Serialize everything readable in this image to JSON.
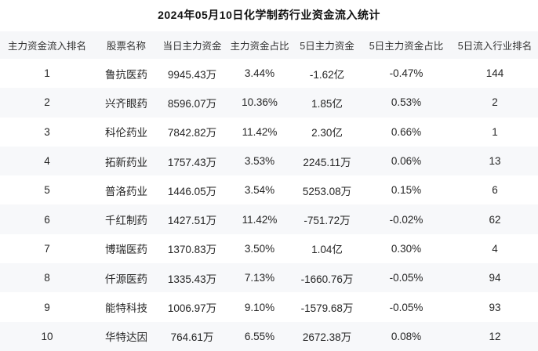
{
  "title": "2024年05月10日化学制药行业资金流入统计",
  "colors": {
    "background": "#ffffff",
    "header_band": "#f6f7f9",
    "zebra_stripe": "#f7f8fa",
    "title_text": "#111111",
    "header_text": "#333333",
    "cell_text": "#262626"
  },
  "chart_data": {
    "type": "table",
    "title": "2024年05月10日化学制药行业资金流入统计",
    "column_keys": [
      "rank",
      "stock_name",
      "day_main_fund",
      "main_fund_ratio",
      "five_day_main_fund",
      "five_day_main_fund_ratio",
      "five_day_industry_rank"
    ],
    "columns": [
      "主力资金流入排名",
      "股票名称",
      "当日主力资金",
      "主力资金占比",
      "5日主力资金",
      "5日主力资金占比",
      "5日流入行业排名"
    ],
    "rows": [
      [
        "1",
        "鲁抗医药",
        "9945.43万",
        "3.44%",
        "-1.62亿",
        "-0.47%",
        "144"
      ],
      [
        "2",
        "兴齐眼药",
        "8596.07万",
        "10.36%",
        "1.85亿",
        "0.53%",
        "2"
      ],
      [
        "3",
        "科伦药业",
        "7842.82万",
        "11.42%",
        "2.30亿",
        "0.66%",
        "1"
      ],
      [
        "4",
        "拓新药业",
        "1757.43万",
        "3.53%",
        "2245.11万",
        "0.06%",
        "13"
      ],
      [
        "5",
        "普洛药业",
        "1446.05万",
        "3.54%",
        "5253.08万",
        "0.15%",
        "6"
      ],
      [
        "6",
        "千红制药",
        "1427.51万",
        "11.42%",
        "-751.72万",
        "-0.02%",
        "62"
      ],
      [
        "7",
        "博瑞医药",
        "1370.83万",
        "3.50%",
        "1.04亿",
        "0.30%",
        "4"
      ],
      [
        "8",
        "仟源医药",
        "1335.43万",
        "7.13%",
        "-1660.76万",
        "-0.05%",
        "94"
      ],
      [
        "9",
        "能特科技",
        "1006.97万",
        "9.10%",
        "-1579.68万",
        "-0.05%",
        "93"
      ],
      [
        "10",
        "华特达因",
        "764.61万",
        "6.55%",
        "2672.38万",
        "0.08%",
        "12"
      ]
    ],
    "layout": {
      "grid": false,
      "zebra_striping": true,
      "alignment": "center"
    }
  }
}
